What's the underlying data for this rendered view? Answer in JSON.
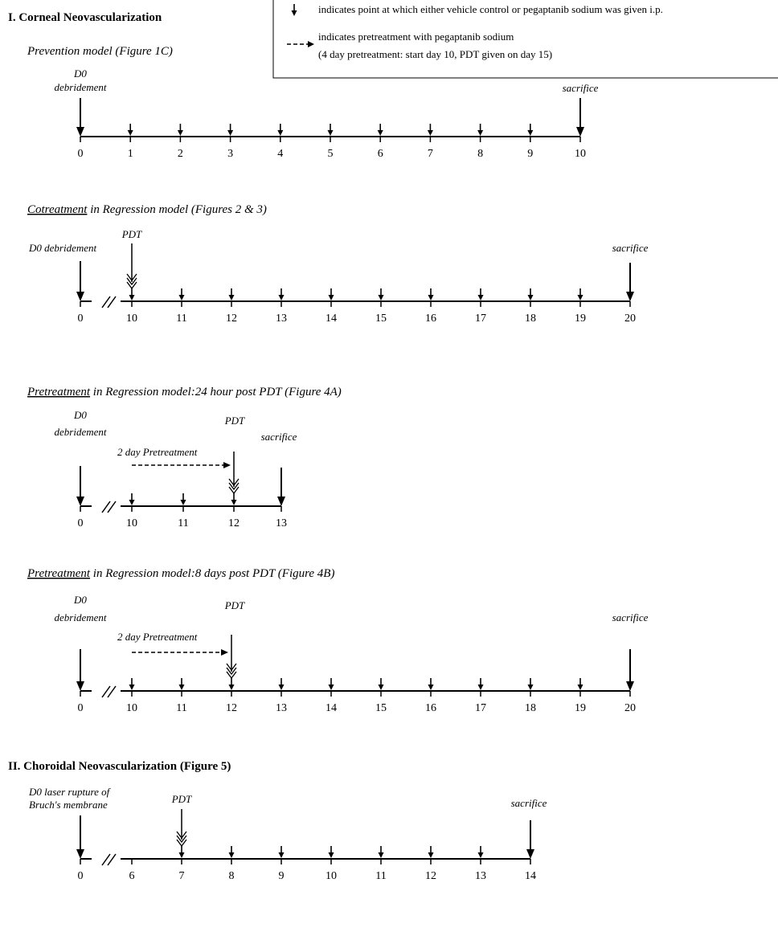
{
  "legend": {
    "small_arrow_text": "indicates point at which either vehicle control or pegaptanib sodium was given i.p.",
    "dashed_arrow_text_1": "indicates pretreatment with pegaptanib sodium",
    "dashed_arrow_text_2": "(4 day pretreatment: start day 10, PDT given on day 15)"
  },
  "section1": {
    "title": "I. Corneal Neovascularization"
  },
  "section2": {
    "title": "II. Choroidal Neovascularization (Figure 5)"
  },
  "prevention": {
    "title": "Prevention model (Figure 1C)",
    "d0_line1": "D0",
    "d0_line2": "debridement",
    "sacrifice": "sacrifice",
    "ticks": [
      "0",
      "1",
      "2",
      "3",
      "4",
      "5",
      "6",
      "7",
      "8",
      "9",
      "10"
    ]
  },
  "cotreatment": {
    "title_underlined": "Cotreatment",
    "title_rest": " in Regression model (Figures 2 & 3)",
    "d0_label": "D0 debridement",
    "pdt": "PDT",
    "sacrifice": "sacrifice",
    "ticks": [
      "0",
      "10",
      "11",
      "12",
      "13",
      "14",
      "15",
      "16",
      "17",
      "18",
      "19",
      "20"
    ]
  },
  "pre24": {
    "title_underlined": "Pretreatment",
    "title_rest": " in Regression model:24 hour post PDT (Figure 4A)",
    "d0_line1": "D0",
    "d0_line2": "debridement",
    "pdt": "PDT",
    "sacrifice": "sacrifice",
    "pretreatment": "2 day Pretreatment",
    "ticks": [
      "0",
      "10",
      "11",
      "12",
      "13"
    ]
  },
  "pre8": {
    "title_underlined": "Pretreatment",
    "title_rest": " in Regression model:8 days post PDT (Figure 4B)",
    "d0_line1": "D0",
    "d0_line2": "debridement",
    "pdt": "PDT",
    "sacrifice": "sacrifice",
    "pretreatment": "2 day Pretreatment",
    "ticks": [
      "0",
      "10",
      "11",
      "12",
      "13",
      "14",
      "15",
      "16",
      "17",
      "18",
      "19",
      "20"
    ]
  },
  "choroidal": {
    "d0_line1": "D0 laser rupture of",
    "d0_line2": "Bruch's membrane",
    "pdt": "PDT",
    "sacrifice": "sacrifice",
    "ticks": [
      "0",
      "6",
      "7",
      "8",
      "9",
      "10",
      "11",
      "12",
      "13",
      "14"
    ]
  }
}
